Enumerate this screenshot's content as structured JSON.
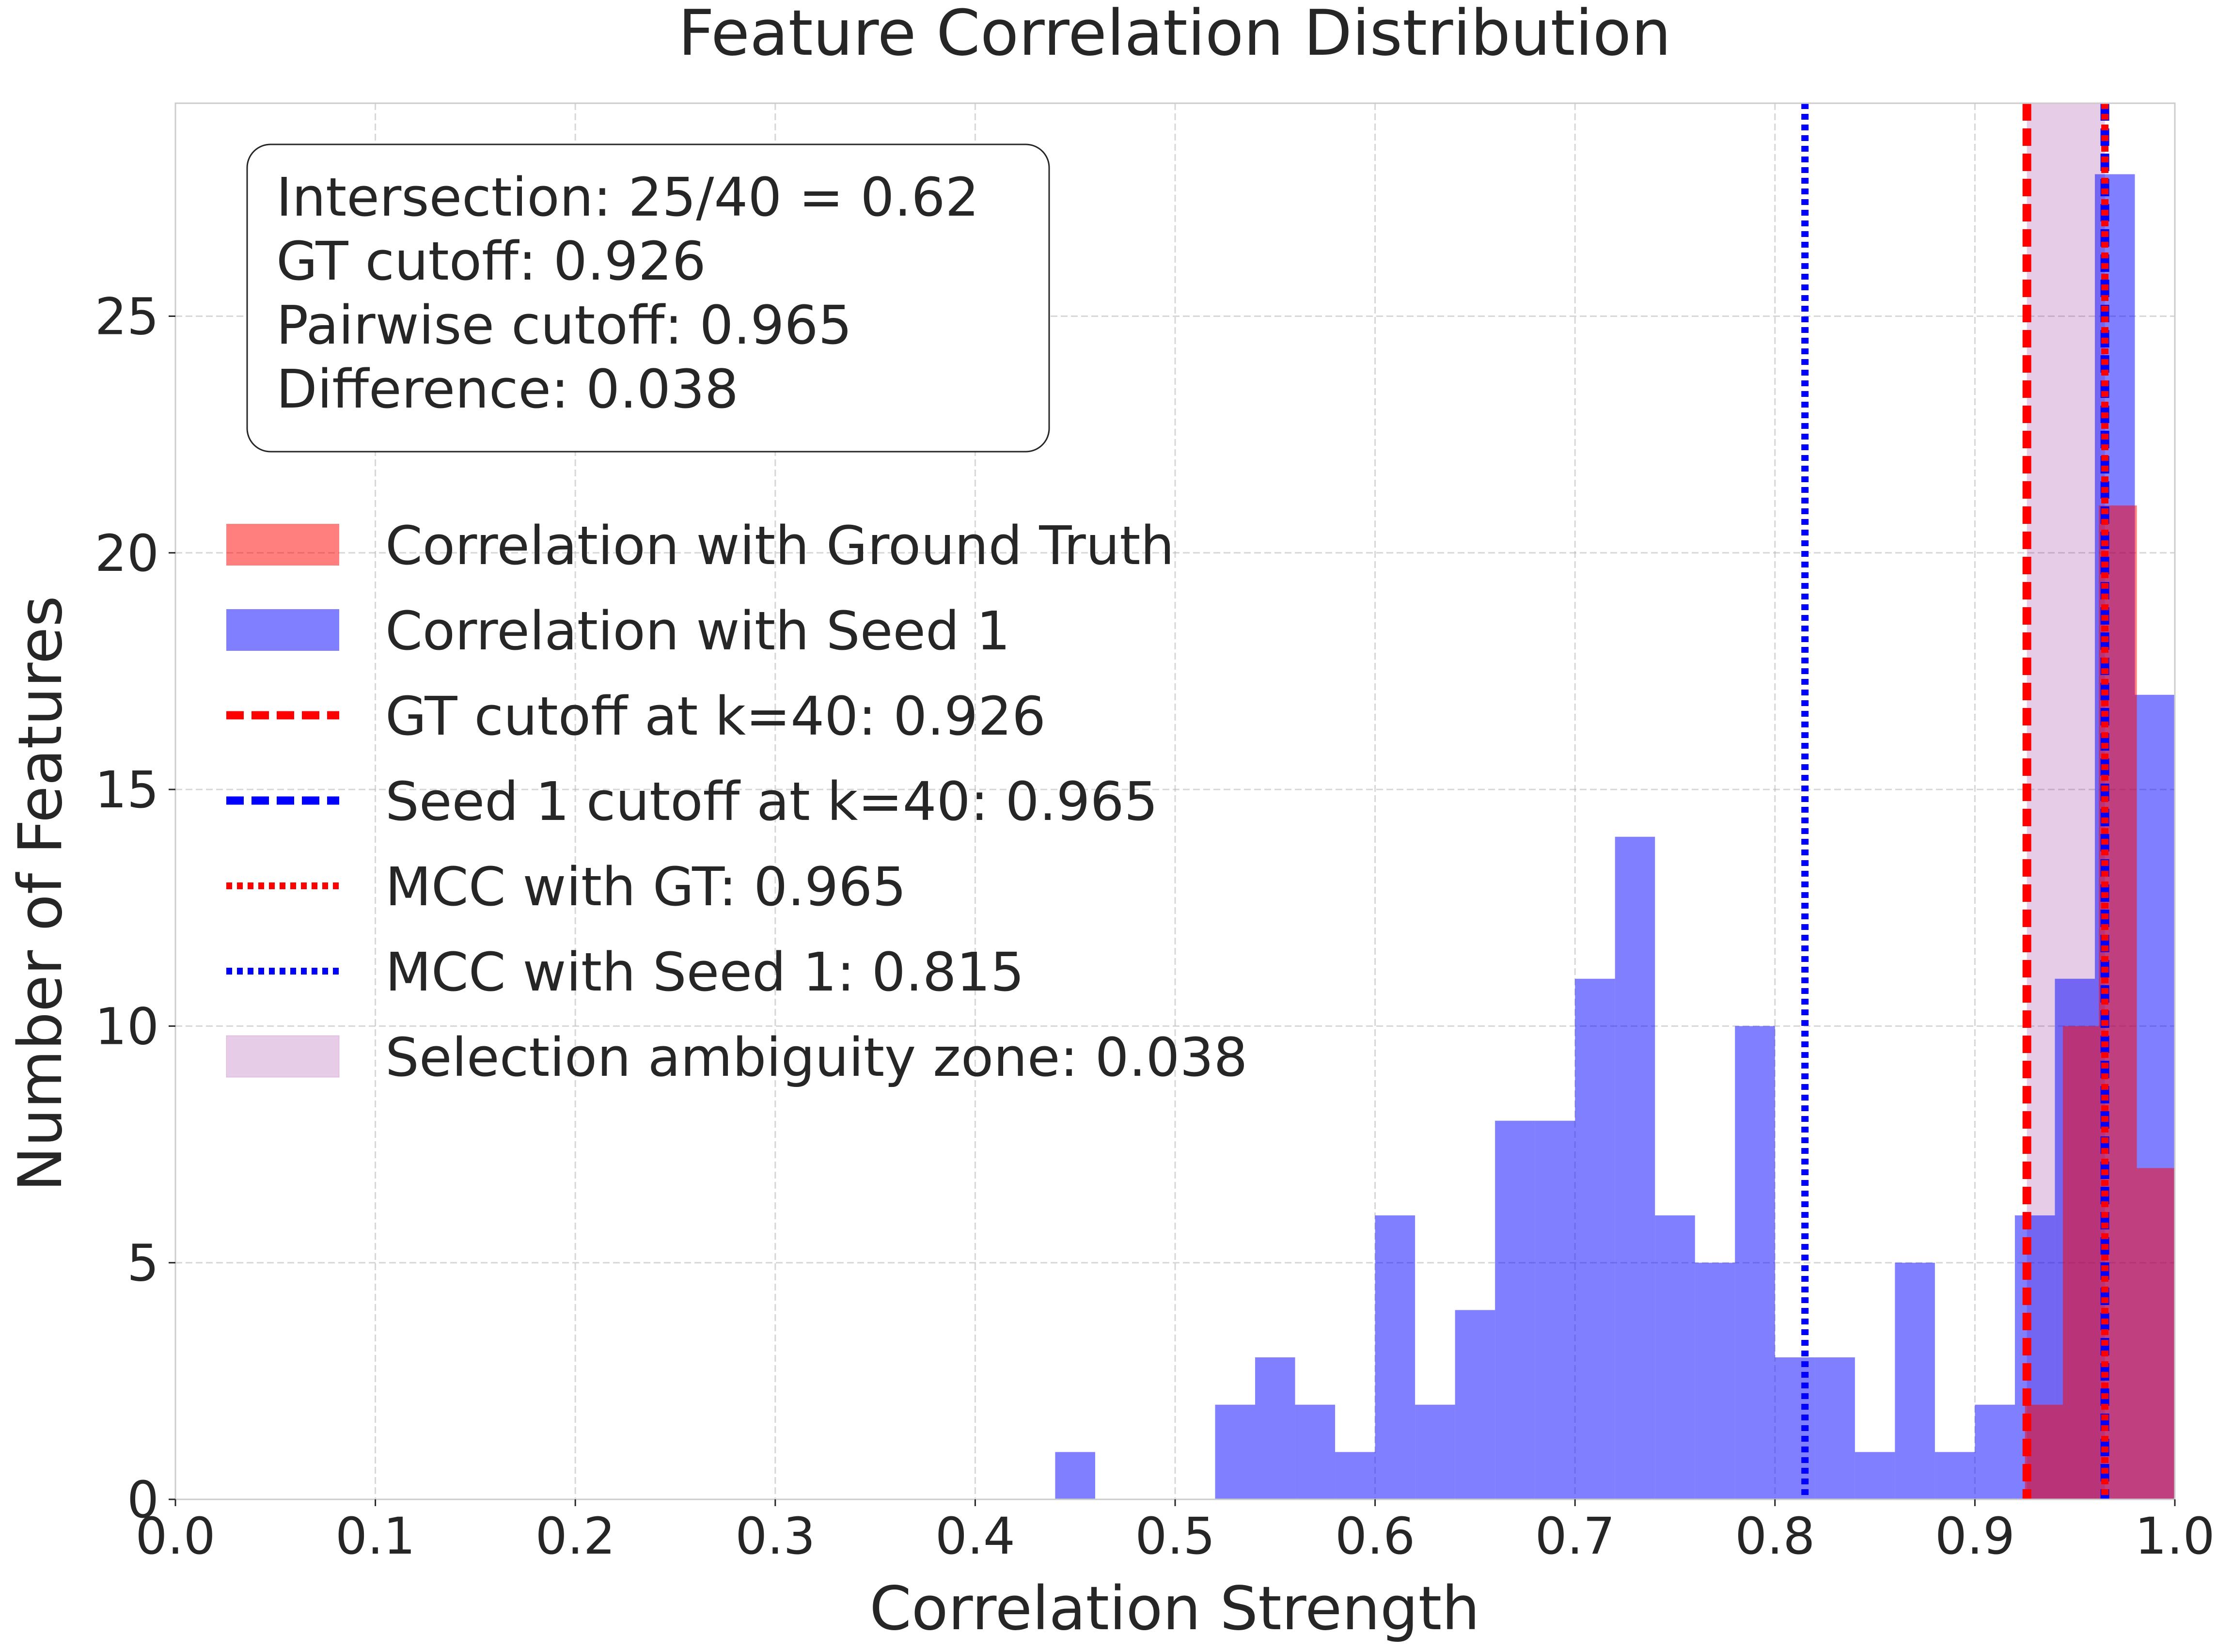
{
  "chart_data": {
    "type": "histogram",
    "title": "Feature Correlation Distribution",
    "xlabel": "Correlation Strength",
    "ylabel": "Number of Features",
    "xlim": [
      0.0,
      1.0
    ],
    "ylim": [
      0,
      29.5
    ],
    "x_ticks": [
      0.0,
      0.1,
      0.2,
      0.3,
      0.4,
      0.5,
      0.6,
      0.7,
      0.8,
      0.9,
      1.0
    ],
    "x_tick_labels": [
      "0.0",
      "0.1",
      "0.2",
      "0.3",
      "0.4",
      "0.5",
      "0.6",
      "0.7",
      "0.8",
      "0.9",
      "1.0"
    ],
    "y_ticks": [
      0,
      5,
      10,
      15,
      20,
      25
    ],
    "y_tick_labels": [
      "0",
      "5",
      "10",
      "15",
      "20",
      "25"
    ],
    "grid": true,
    "series": [
      {
        "name": "Correlation with Seed 1",
        "color": "#0000ff",
        "opacity": 0.5,
        "bins": [
          {
            "x0": 0.44,
            "x1": 0.46,
            "count": 1
          },
          {
            "x0": 0.52,
            "x1": 0.54,
            "count": 2
          },
          {
            "x0": 0.54,
            "x1": 0.56,
            "count": 3
          },
          {
            "x0": 0.56,
            "x1": 0.58,
            "count": 2
          },
          {
            "x0": 0.58,
            "x1": 0.6,
            "count": 1
          },
          {
            "x0": 0.6,
            "x1": 0.62,
            "count": 6
          },
          {
            "x0": 0.62,
            "x1": 0.64,
            "count": 2
          },
          {
            "x0": 0.64,
            "x1": 0.66,
            "count": 4
          },
          {
            "x0": 0.66,
            "x1": 0.68,
            "count": 8
          },
          {
            "x0": 0.68,
            "x1": 0.7,
            "count": 8
          },
          {
            "x0": 0.7,
            "x1": 0.72,
            "count": 11
          },
          {
            "x0": 0.72,
            "x1": 0.74,
            "count": 14
          },
          {
            "x0": 0.74,
            "x1": 0.76,
            "count": 6
          },
          {
            "x0": 0.76,
            "x1": 0.78,
            "count": 5
          },
          {
            "x0": 0.78,
            "x1": 0.8,
            "count": 10
          },
          {
            "x0": 0.8,
            "x1": 0.82,
            "count": 3
          },
          {
            "x0": 0.82,
            "x1": 0.84,
            "count": 3
          },
          {
            "x0": 0.84,
            "x1": 0.86,
            "count": 1
          },
          {
            "x0": 0.86,
            "x1": 0.88,
            "count": 5
          },
          {
            "x0": 0.88,
            "x1": 0.9,
            "count": 1
          },
          {
            "x0": 0.9,
            "x1": 0.92,
            "count": 2
          },
          {
            "x0": 0.92,
            "x1": 0.94,
            "count": 6
          },
          {
            "x0": 0.94,
            "x1": 0.96,
            "count": 11
          },
          {
            "x0": 0.96,
            "x1": 0.98,
            "count": 28
          },
          {
            "x0": 0.98,
            "x1": 1.0,
            "count": 17
          }
        ]
      },
      {
        "name": "Correlation with Ground Truth",
        "color": "#ff0000",
        "opacity": 0.5,
        "bins": [
          {
            "x0": 0.925,
            "x1": 0.944,
            "count": 2
          },
          {
            "x0": 0.944,
            "x1": 0.962,
            "count": 10
          },
          {
            "x0": 0.962,
            "x1": 0.981,
            "count": 21
          },
          {
            "x0": 0.981,
            "x1": 1.0,
            "count": 7
          }
        ]
      }
    ],
    "ambiguity_zone": {
      "x0": 0.926,
      "x1": 0.965,
      "color": "#800080",
      "opacity": 0.2,
      "label": "Selection ambiguity zone: 0.038"
    },
    "vlines": [
      {
        "x": 0.926,
        "color": "#ff0000",
        "style": "dashed",
        "label": "GT cutoff at k=40: 0.926"
      },
      {
        "x": 0.965,
        "color": "#0000ff",
        "style": "dashed",
        "label": "Seed 1 cutoff at k=40: 0.965"
      },
      {
        "x": 0.965,
        "color": "#ff0000",
        "style": "dotted",
        "label": "MCC with GT: 0.965"
      },
      {
        "x": 0.815,
        "color": "#0000ff",
        "style": "dotted",
        "label": "MCC with Seed 1: 0.815"
      }
    ],
    "legend_location": "center-left",
    "legend": [
      {
        "label": "Correlation with Ground Truth",
        "kind": "patch",
        "color": "#ff0000",
        "opacity": 0.5
      },
      {
        "label": "Correlation with Seed 1",
        "kind": "patch",
        "color": "#0000ff",
        "opacity": 0.5
      },
      {
        "label": "GT cutoff at k=40: 0.926",
        "kind": "dashed",
        "color": "#ff0000"
      },
      {
        "label": "Seed 1 cutoff at k=40: 0.965",
        "kind": "dashed",
        "color": "#0000ff"
      },
      {
        "label": "MCC with GT: 0.965",
        "kind": "dotted",
        "color": "#ff0000"
      },
      {
        "label": "MCC with Seed 1: 0.815",
        "kind": "dotted",
        "color": "#0000ff"
      },
      {
        "label": "Selection ambiguity zone: 0.038",
        "kind": "patch",
        "color": "#800080",
        "opacity": 0.2
      }
    ],
    "annotation_location": "top-left",
    "annotation_lines": [
      "Intersection: 25/40 = 0.62",
      "GT cutoff: 0.926",
      "Pairwise cutoff: 0.965",
      "Difference: 0.038"
    ]
  }
}
